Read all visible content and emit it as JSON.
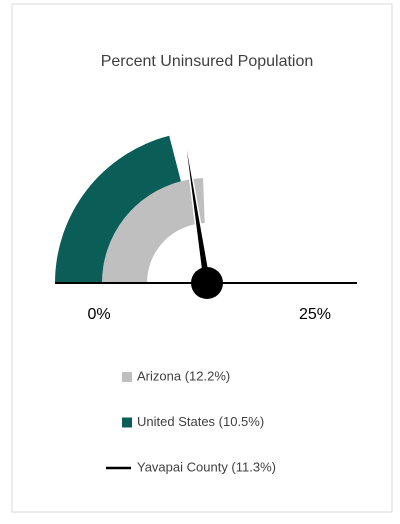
{
  "chart_data": {
    "type": "gauge",
    "title": "Percent Uninsured Population",
    "xlim": [
      0,
      25
    ],
    "xticks": [
      {
        "value": 0,
        "label": "0%"
      },
      {
        "value": 25,
        "label": "25%"
      }
    ],
    "series": [
      {
        "name": "Arizona (12.2%)",
        "color": "#bfbfbf",
        "style": "band",
        "values": [
          12.2
        ]
      },
      {
        "name": "United States (10.5%)",
        "color": "#0b5e57",
        "style": "band",
        "values": [
          10.5
        ]
      },
      {
        "name": "Yavapai County (11.3%)",
        "color": "#000000",
        "style": "needle",
        "values": [
          11.3
        ]
      }
    ]
  }
}
